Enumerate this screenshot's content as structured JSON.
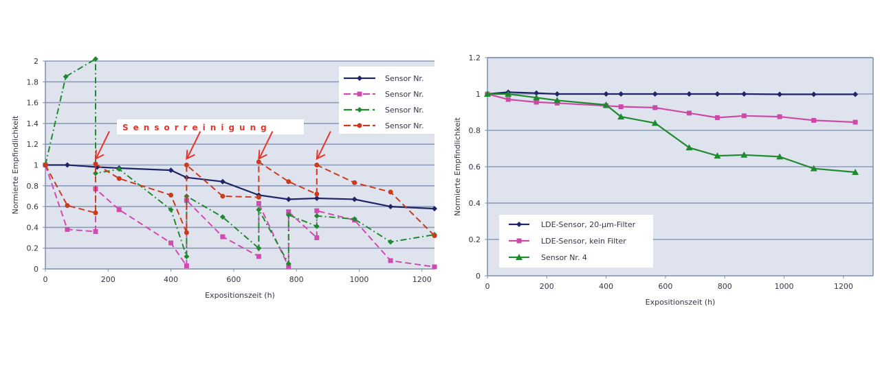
{
  "chart_data": [
    {
      "type": "line",
      "title": "",
      "xlabel": "Expositionszeit (h)",
      "ylabel": "Normierte Empfindlichkeit",
      "xlim": [
        0,
        1240
      ],
      "ylim": [
        0,
        2
      ],
      "xticks": [
        0,
        200,
        400,
        600,
        800,
        1000,
        1200
      ],
      "xtick_labels": [
        "0",
        "200",
        "400",
        "600",
        "800",
        "1000",
        "1200"
      ],
      "yticks": [
        0,
        0.2,
        0.4,
        0.6,
        0.8,
        1,
        1.2,
        1.4,
        1.6,
        1.8,
        2
      ],
      "ytick_labels": [
        "0",
        "0.2",
        "0.4",
        "0.6",
        "0.8",
        "1",
        "1.2",
        "1.4",
        "1.6",
        "1.8",
        "2"
      ],
      "grid": true,
      "legend_position": "top-right",
      "annotation": {
        "text": "Sensorreinigung",
        "arrow_x": [
          160,
          450,
          680,
          865
        ]
      },
      "series": [
        {
          "name": "Sensor Nr.",
          "color": "#1f2466",
          "style": "solid",
          "marker": "diamond",
          "points": [
            [
              0,
              1
            ],
            [
              70,
              1
            ],
            [
              165,
              0.98
            ],
            [
              235,
              0.97
            ],
            [
              400,
              0.95
            ],
            [
              450,
              0.88
            ],
            [
              565,
              0.84
            ],
            [
              680,
              0.71
            ],
            [
              775,
              0.67
            ],
            [
              865,
              0.68
            ],
            [
              985,
              0.67
            ],
            [
              1100,
              0.6
            ],
            [
              1240,
              0.58
            ]
          ]
        },
        {
          "name": "Sensor Nr.",
          "color": "#d04ab0",
          "style": "dashed",
          "marker": "square",
          "points": [
            [
              0,
              1
            ],
            [
              70,
              0.38
            ],
            [
              160,
              0.36
            ],
            [
              160,
              0.77
            ],
            [
              235,
              0.57
            ],
            [
              400,
              0.25
            ],
            [
              450,
              0.03
            ],
            [
              450,
              0.66
            ],
            [
              565,
              0.31
            ],
            [
              680,
              0.12
            ],
            [
              680,
              0.63
            ],
            [
              775,
              0.02
            ],
            [
              775,
              0.55
            ],
            [
              865,
              0.3
            ],
            [
              865,
              0.56
            ],
            [
              985,
              0.47
            ],
            [
              1100,
              0.08
            ],
            [
              1240,
              0.02
            ]
          ]
        },
        {
          "name": "Sensor Nr.",
          "color": "#1e8a2e",
          "style": "dashdot",
          "marker": "diamond",
          "points": [
            [
              0,
              1
            ],
            [
              65,
              1.85
            ],
            [
              160,
              2.02
            ],
            [
              160,
              0.92
            ],
            [
              235,
              0.96
            ],
            [
              400,
              0.57
            ],
            [
              450,
              0.12
            ],
            [
              450,
              0.7
            ],
            [
              565,
              0.5
            ],
            [
              680,
              0.2
            ],
            [
              680,
              0.57
            ],
            [
              775,
              0.05
            ],
            [
              775,
              0.52
            ],
            [
              865,
              0.41
            ],
            [
              865,
              0.51
            ],
            [
              985,
              0.48
            ],
            [
              1100,
              0.26
            ],
            [
              1240,
              0.33
            ]
          ]
        },
        {
          "name": "Sensor Nr.",
          "color": "#cc3a1c",
          "style": "dashed",
          "marker": "circle",
          "points": [
            [
              0,
              1
            ],
            [
              70,
              0.61
            ],
            [
              160,
              0.54
            ],
            [
              160,
              1.01
            ],
            [
              235,
              0.87
            ],
            [
              400,
              0.71
            ],
            [
              450,
              0.35
            ],
            [
              450,
              1.0
            ],
            [
              565,
              0.7
            ],
            [
              680,
              0.69
            ],
            [
              680,
              1.03
            ],
            [
              775,
              0.84
            ],
            [
              865,
              0.72
            ],
            [
              865,
              1.0
            ],
            [
              985,
              0.83
            ],
            [
              1100,
              0.74
            ],
            [
              1240,
              0.32
            ]
          ]
        }
      ]
    },
    {
      "type": "line",
      "title": "",
      "xlabel": "Expositionszeit (h)",
      "ylabel": "Normierte Empfindlichkeit",
      "xlim": [
        0,
        1300
      ],
      "ylim": [
        0,
        1.2
      ],
      "xticks": [
        0,
        200,
        400,
        600,
        800,
        1000,
        1200
      ],
      "xtick_labels": [
        "0",
        "200",
        "400",
        "600",
        "800",
        "1000",
        "1200"
      ],
      "yticks": [
        0,
        0.2,
        0.4,
        0.6,
        0.8,
        1,
        1.2
      ],
      "ytick_labels": [
        "0",
        "0.2",
        "0.4",
        "0.6",
        "0.8",
        "1",
        "1.2"
      ],
      "grid": true,
      "legend_position": "bottom-left",
      "series": [
        {
          "name": "LDE-Sensor, 20-µm-Filter",
          "color": "#1f2466",
          "style": "solid",
          "marker": "diamond",
          "points": [
            [
              0,
              1
            ],
            [
              70,
              1.01
            ],
            [
              165,
              1.005
            ],
            [
              235,
              1.0
            ],
            [
              400,
              1.0
            ],
            [
              450,
              1.0
            ],
            [
              565,
              1.0
            ],
            [
              680,
              1.0
            ],
            [
              775,
              1.0
            ],
            [
              865,
              1.0
            ],
            [
              985,
              0.998
            ],
            [
              1100,
              0.998
            ],
            [
              1240,
              0.998
            ]
          ]
        },
        {
          "name": "LDE-Sensor, kein Filter",
          "color": "#cc4aa6",
          "style": "solid",
          "marker": "square",
          "points": [
            [
              0,
              1
            ],
            [
              70,
              0.97
            ],
            [
              165,
              0.955
            ],
            [
              235,
              0.95
            ],
            [
              400,
              0.935
            ],
            [
              450,
              0.93
            ],
            [
              565,
              0.925
            ],
            [
              680,
              0.895
            ],
            [
              775,
              0.87
            ],
            [
              865,
              0.88
            ],
            [
              985,
              0.875
            ],
            [
              1100,
              0.855
            ],
            [
              1240,
              0.845
            ]
          ]
        },
        {
          "name": "Sensor Nr. 4",
          "color": "#1e8a2e",
          "style": "solid",
          "marker": "triangle",
          "points": [
            [
              0,
              1
            ],
            [
              70,
              1.0
            ],
            [
              165,
              0.98
            ],
            [
              235,
              0.965
            ],
            [
              400,
              0.94
            ],
            [
              450,
              0.875
            ],
            [
              565,
              0.84
            ],
            [
              680,
              0.705
            ],
            [
              775,
              0.66
            ],
            [
              865,
              0.665
            ],
            [
              985,
              0.655
            ],
            [
              1100,
              0.59
            ],
            [
              1240,
              0.57
            ]
          ]
        }
      ]
    }
  ]
}
